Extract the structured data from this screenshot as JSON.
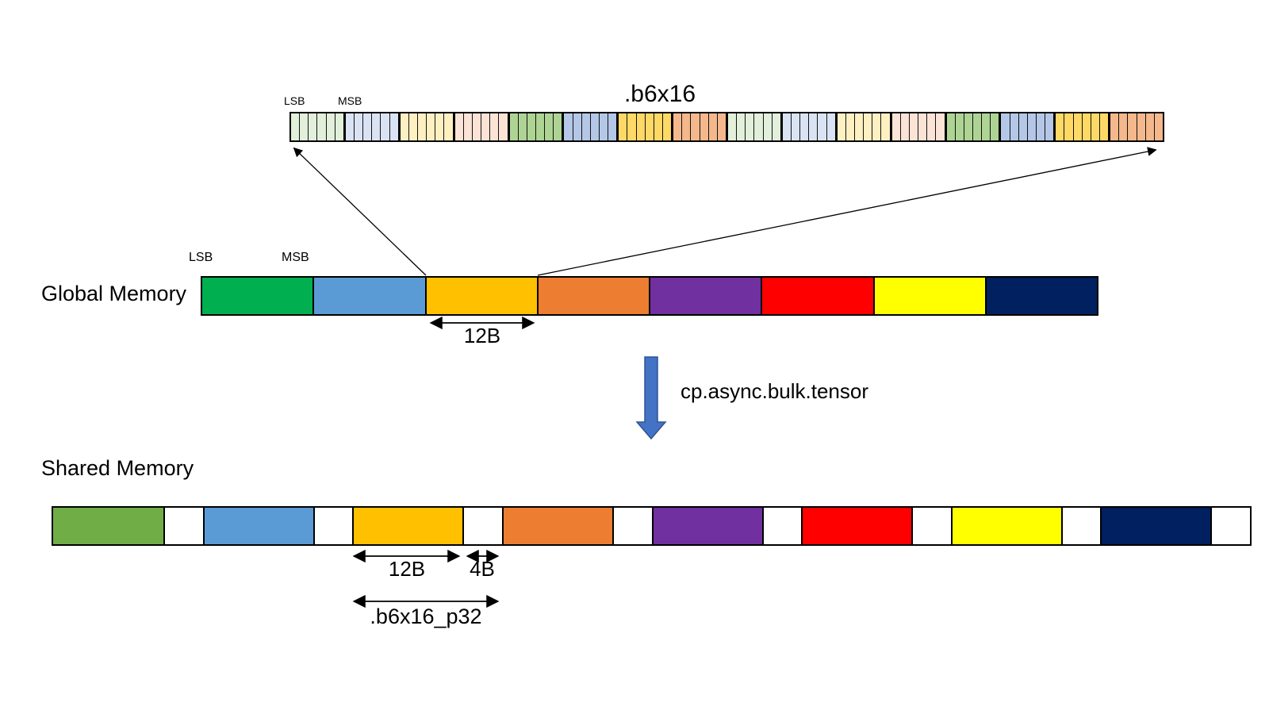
{
  "bit_strip": {
    "title": ".b6x16",
    "lsb_label": "LSB",
    "msb_label": "MSB",
    "group_count": 16,
    "cells_per_group": 6,
    "palette": [
      "#E2EFDA",
      "#DAE3F3",
      "#FFF0C2",
      "#FBE3D6",
      "#AED494",
      "#B4C7E7",
      "#FFD966",
      "#F4B88C"
    ]
  },
  "global_memory": {
    "label": "Global Memory",
    "lsb_label": "LSB",
    "msb_label": "MSB",
    "chunk_size_label": "12B",
    "blocks": [
      {
        "name": "green",
        "color": "#00B050"
      },
      {
        "name": "blue",
        "color": "#5B9BD5"
      },
      {
        "name": "amber",
        "color": "#FFC000"
      },
      {
        "name": "orange",
        "color": "#ED7D31"
      },
      {
        "name": "purple",
        "color": "#7030A0"
      },
      {
        "name": "red",
        "color": "#FF0000"
      },
      {
        "name": "yellow",
        "color": "#FFFF00"
      },
      {
        "name": "navy",
        "color": "#002060"
      }
    ]
  },
  "transfer": {
    "label": "cp.async.bulk.tensor",
    "arrow_fill": "#4472C4",
    "arrow_stroke": "#2E5395"
  },
  "shared_memory": {
    "label": "Shared Memory",
    "chunk_size_label": "12B",
    "padding_size_label": "4B",
    "packed_label": ".b6x16_p32",
    "blocks": [
      {
        "name": "green",
        "color": "#70AD47"
      },
      {
        "name": "blue",
        "color": "#5B9BD5"
      },
      {
        "name": "amber",
        "color": "#FFC000"
      },
      {
        "name": "orange",
        "color": "#ED7D31"
      },
      {
        "name": "purple",
        "color": "#7030A0"
      },
      {
        "name": "red",
        "color": "#FF0000"
      },
      {
        "name": "yellow",
        "color": "#FFFF00"
      },
      {
        "name": "navy",
        "color": "#002060"
      }
    ]
  }
}
